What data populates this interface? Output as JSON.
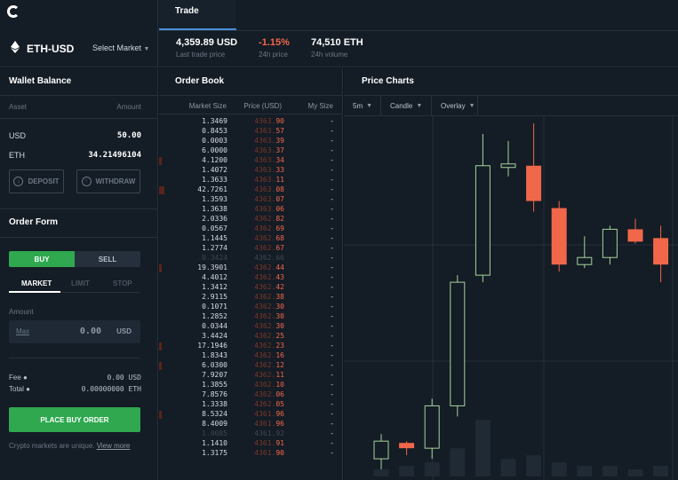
{
  "header": {
    "pair": "ETH-USD",
    "select_market": "Select Market",
    "tab": "Trade",
    "stats": [
      {
        "value": "4,359.89 USD",
        "label": "Last trade price"
      },
      {
        "value": "-1.15%",
        "label": "24h price"
      },
      {
        "value": "74,510 ETH",
        "label": "24h volume"
      }
    ]
  },
  "wallet": {
    "title": "Wallet Balance",
    "col_asset": "Asset",
    "col_amount": "Amount",
    "assets": [
      {
        "name": "USD",
        "amount": "50.00"
      },
      {
        "name": "ETH",
        "amount": "34.21496104"
      }
    ],
    "deposit": "DEPOSIT",
    "withdraw": "WITHDRAW"
  },
  "order_form": {
    "title": "Order Form",
    "buy": "BUY",
    "sell": "SELL",
    "tabs": [
      "MARKET",
      "LIMIT",
      "STOP"
    ],
    "amount_label": "Amount",
    "max": "Max",
    "amount_value": "0.00",
    "amount_unit": "USD",
    "fee_label": "Fee",
    "fee_value": "0.00 USD",
    "total_label": "Total",
    "total_value": "0.00000000 ETH",
    "place_order": "PLACE BUY ORDER",
    "disclaimer": "Crypto markets are unique.",
    "disclaimer_link": "View more"
  },
  "order_book": {
    "title": "Order Book",
    "col_size": "Market Size",
    "col_price": "Price (USD)",
    "col_my": "My Size",
    "rows": [
      {
        "size": "1.3469",
        "price_a": "4363.",
        "price_b": "90",
        "my": "-",
        "bar": 0
      },
      {
        "size": "0.8453",
        "price_a": "4363.",
        "price_b": "57",
        "my": "-",
        "bar": 0
      },
      {
        "size": "0.0003",
        "price_a": "4363.",
        "price_b": "39",
        "my": "-",
        "bar": 0
      },
      {
        "size": "6.0000",
        "price_a": "4363.",
        "price_b": "37",
        "my": "-",
        "bar": 0
      },
      {
        "size": "4.1200",
        "price_a": "4363.",
        "price_b": "34",
        "my": "-",
        "bar": 0.02
      },
      {
        "size": "1.4072",
        "price_a": "4363.",
        "price_b": "33",
        "my": "-",
        "bar": 0
      },
      {
        "size": "1.3633",
        "price_a": "4363.",
        "price_b": "11",
        "my": "-",
        "bar": 0
      },
      {
        "size": "42.7261",
        "price_a": "4363.",
        "price_b": "08",
        "my": "-",
        "bar": 0.06
      },
      {
        "size": "1.3593",
        "price_a": "4363.",
        "price_b": "07",
        "my": "-",
        "bar": 0
      },
      {
        "size": "1.3638",
        "price_a": "4363.",
        "price_b": "06",
        "my": "-",
        "bar": 0
      },
      {
        "size": "2.0336",
        "price_a": "4362.",
        "price_b": "82",
        "my": "-",
        "bar": 0
      },
      {
        "size": "0.0567",
        "price_a": "4362.",
        "price_b": "69",
        "my": "-",
        "bar": 0
      },
      {
        "size": "1.1445",
        "price_a": "4362.",
        "price_b": "68",
        "my": "-",
        "bar": 0
      },
      {
        "size": "1.2774",
        "price_a": "4362.",
        "price_b": "67",
        "my": "-",
        "bar": 0
      },
      {
        "size": "0.3424",
        "price_a": "4362.",
        "price_b": "66",
        "my": "-",
        "bar": 0,
        "dim": true
      },
      {
        "size": "19.3901",
        "price_a": "4362.",
        "price_b": "44",
        "my": "-",
        "bar": 0.03
      },
      {
        "size": "4.4012",
        "price_a": "4362.",
        "price_b": "43",
        "my": "-",
        "bar": 0
      },
      {
        "size": "1.3412",
        "price_a": "4362.",
        "price_b": "42",
        "my": "-",
        "bar": 0
      },
      {
        "size": "2.9115",
        "price_a": "4362.",
        "price_b": "38",
        "my": "-",
        "bar": 0
      },
      {
        "size": "0.1071",
        "price_a": "4362.",
        "price_b": "30",
        "my": "-",
        "bar": 0
      },
      {
        "size": "1.2852",
        "price_a": "4362.",
        "price_b": "30",
        "my": "-",
        "bar": 0
      },
      {
        "size": "0.0344",
        "price_a": "4362.",
        "price_b": "30",
        "my": "-",
        "bar": 0
      },
      {
        "size": "3.4424",
        "price_a": "4362.",
        "price_b": "25",
        "my": "-",
        "bar": 0
      },
      {
        "size": "17.1946",
        "price_a": "4362.",
        "price_b": "23",
        "my": "-",
        "bar": 0.03
      },
      {
        "size": "1.8343",
        "price_a": "4362.",
        "price_b": "16",
        "my": "-",
        "bar": 0
      },
      {
        "size": "6.0300",
        "price_a": "4362.",
        "price_b": "12",
        "my": "-",
        "bar": 0.01
      },
      {
        "size": "7.9207",
        "price_a": "4362.",
        "price_b": "11",
        "my": "-",
        "bar": 0
      },
      {
        "size": "1.3855",
        "price_a": "4362.",
        "price_b": "10",
        "my": "-",
        "bar": 0
      },
      {
        "size": "7.8576",
        "price_a": "4362.",
        "price_b": "06",
        "my": "-",
        "bar": 0
      },
      {
        "size": "1.3338",
        "price_a": "4362.",
        "price_b": "05",
        "my": "-",
        "bar": 0
      },
      {
        "size": "8.5324",
        "price_a": "4361.",
        "price_b": "96",
        "my": "-",
        "bar": 0.01
      },
      {
        "size": "8.4009",
        "price_a": "4361.",
        "price_b": "96",
        "my": "-",
        "bar": 0
      },
      {
        "size": "1.0085",
        "price_a": "4361.",
        "price_b": "92",
        "my": "-",
        "bar": 0,
        "dim": true
      },
      {
        "size": "1.1410",
        "price_a": "4361.",
        "price_b": "91",
        "my": "-",
        "bar": 0
      },
      {
        "size": "1.3175",
        "price_a": "4361.",
        "price_b": "90",
        "my": "-",
        "bar": 0
      }
    ]
  },
  "price_charts": {
    "title": "Price Charts",
    "interval": "5m",
    "chart_type": "Candle",
    "overlay": "Overlay"
  },
  "chart_data": {
    "type": "candlestick",
    "colors": {
      "up": "#a6d49b",
      "down": "#f0674a",
      "grid": "#26313c",
      "volume": "#1f2a35"
    },
    "candles": [
      {
        "open": 0.05,
        "close": 0.1,
        "high": 0.12,
        "low": 0.02,
        "dir": "up"
      },
      {
        "open": 0.08,
        "close": 0.095,
        "high": 0.1,
        "low": 0.06,
        "dir": "down"
      },
      {
        "open": 0.08,
        "close": 0.2,
        "high": 0.22,
        "low": 0.05,
        "dir": "up"
      },
      {
        "open": 0.2,
        "close": 0.55,
        "high": 0.57,
        "low": 0.17,
        "dir": "up"
      },
      {
        "open": 0.57,
        "close": 0.88,
        "high": 0.97,
        "low": 0.55,
        "dir": "up"
      },
      {
        "open": 0.875,
        "close": 0.885,
        "high": 0.95,
        "low": 0.85,
        "dir": "up"
      },
      {
        "open": 0.88,
        "close": 0.78,
        "high": 1.0,
        "low": 0.75,
        "dir": "down"
      },
      {
        "open": 0.76,
        "close": 0.6,
        "high": 0.78,
        "low": 0.58,
        "dir": "down"
      },
      {
        "open": 0.6,
        "close": 0.62,
        "high": 0.68,
        "low": 0.59,
        "dir": "up"
      },
      {
        "open": 0.62,
        "close": 0.7,
        "high": 0.71,
        "low": 0.6,
        "dir": "up"
      },
      {
        "open": 0.7,
        "close": 0.665,
        "high": 0.73,
        "low": 0.66,
        "dir": "down"
      },
      {
        "open": 0.675,
        "close": 0.6,
        "high": 0.71,
        "low": 0.55,
        "dir": "down"
      },
      {
        "open": 0.57,
        "close": 0.47,
        "high": 0.59,
        "low": 0.45,
        "dir": "down"
      }
    ],
    "volumes": [
      0.02,
      0.03,
      0.04,
      0.08,
      0.16,
      0.05,
      0.06,
      0.04,
      0.03,
      0.03,
      0.02,
      0.03,
      0.02
    ]
  }
}
